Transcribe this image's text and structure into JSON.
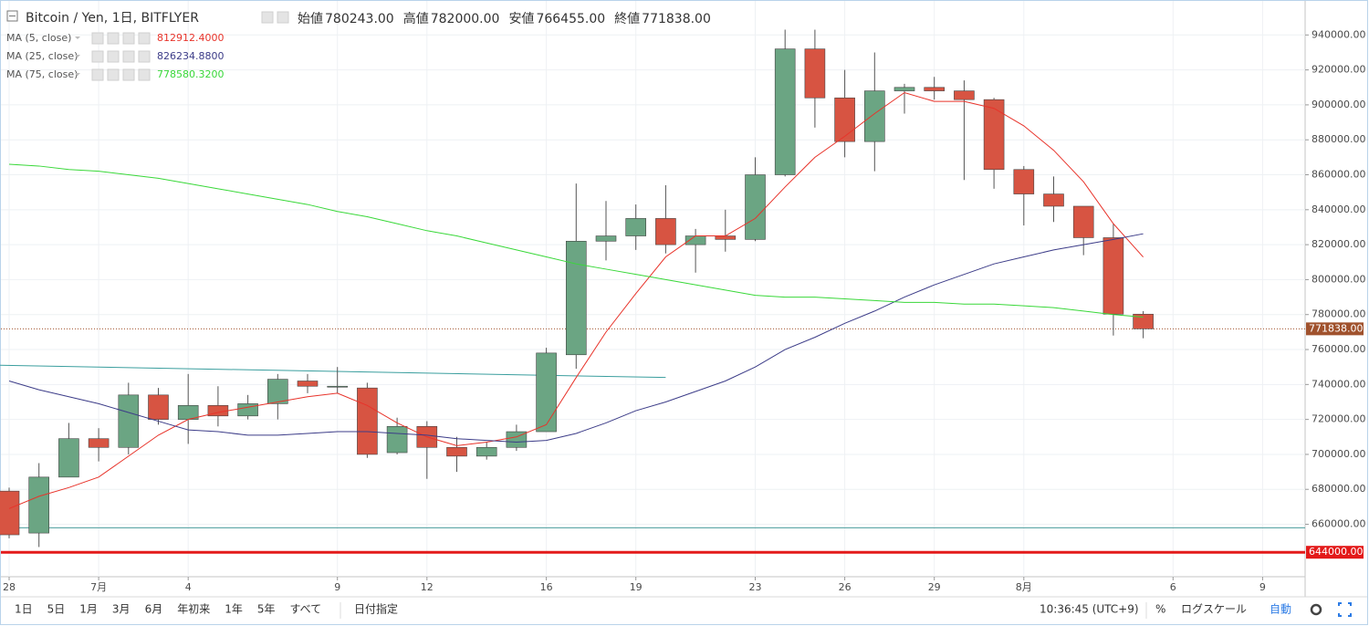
{
  "header": {
    "symbol": "Bitcoin / Yen, 1日, BITFLYER",
    "ohlc": [
      {
        "label": "始値",
        "value": "780243.00"
      },
      {
        "label": "高値",
        "value": "782000.00"
      },
      {
        "label": "安値",
        "value": "766455.00"
      },
      {
        "label": "終値",
        "value": "771838.00"
      }
    ]
  },
  "chart_data": {
    "type": "candlestick",
    "categories": [
      "06-28",
      "06-29",
      "06-30",
      "07-01",
      "07-02",
      "07-03",
      "07-04",
      "07-05",
      "07-06",
      "07-07",
      "07-08",
      "07-09",
      "07-10",
      "07-11",
      "07-12",
      "07-13",
      "07-14",
      "07-15",
      "07-16",
      "07-17",
      "07-18",
      "07-19",
      "07-20",
      "07-21",
      "07-22",
      "07-23",
      "07-24",
      "07-25",
      "07-26",
      "07-27",
      "07-28",
      "07-29",
      "07-30",
      "07-31",
      "08-01",
      "08-02",
      "08-03",
      "08-04",
      "08-05"
    ],
    "open": [
      679000,
      655000,
      687000,
      709000,
      704000,
      734000,
      720000,
      728000,
      722000,
      729000,
      742000,
      739000,
      738000,
      701000,
      716000,
      704000,
      699000,
      704000,
      713000,
      757000,
      822000,
      825000,
      835000,
      820000,
      825000,
      823000,
      860000,
      932000,
      904000,
      879000,
      908000,
      910000,
      908000,
      903000,
      863000,
      849000,
      842000,
      824000,
      780243
    ],
    "high": [
      681000,
      695000,
      718000,
      715000,
      741000,
      738000,
      746000,
      739000,
      734000,
      746000,
      746000,
      750000,
      741000,
      721000,
      719000,
      710000,
      707000,
      717000,
      761000,
      855000,
      845000,
      843000,
      854000,
      829000,
      840000,
      870000,
      943000,
      943000,
      920000,
      930000,
      912000,
      916000,
      914000,
      904000,
      865000,
      859000,
      842000,
      832000,
      782000
    ],
    "low": [
      652000,
      647000,
      687000,
      696000,
      700000,
      717000,
      706000,
      716000,
      720000,
      720000,
      735000,
      735000,
      698000,
      700000,
      686000,
      690000,
      697000,
      702000,
      713000,
      749000,
      811000,
      817000,
      815000,
      804000,
      816000,
      822000,
      859000,
      887000,
      870000,
      862000,
      895000,
      903000,
      857000,
      852000,
      831000,
      833000,
      814000,
      768000,
      766455
    ],
    "close": [
      654000,
      687000,
      709000,
      704000,
      734000,
      720000,
      728000,
      722000,
      729000,
      743000,
      739000,
      739000,
      700000,
      716000,
      704000,
      699000,
      704000,
      713000,
      758000,
      822000,
      825000,
      835000,
      820000,
      825000,
      823000,
      860000,
      932000,
      904000,
      879000,
      908000,
      910000,
      908000,
      903000,
      863000,
      849000,
      842000,
      824000,
      780243,
      771838
    ],
    "up_color": "#6ba583",
    "down_color": "#d75442",
    "series": [
      {
        "name": "MA (5, close)",
        "color": "#e8332a",
        "value_label": "812912.4000",
        "values": [
          669000,
          676000,
          681000,
          687000,
          699000,
          711000,
          720000,
          724000,
          727000,
          730000,
          733000,
          735000,
          728000,
          718000,
          710000,
          705000,
          707000,
          710000,
          717000,
          744000,
          770000,
          792000,
          813000,
          825000,
          825000,
          835000,
          853000,
          870000,
          882000,
          895000,
          907000,
          902000,
          902000,
          898000,
          888000,
          874000,
          856000,
          832000,
          812912.4
        ]
      },
      {
        "name": "MA (25, close)",
        "color": "#3c3c88",
        "value_label": "826234.8800",
        "values": [
          742000,
          737000,
          733000,
          729000,
          724000,
          719000,
          714000,
          713000,
          711000,
          711000,
          712000,
          713000,
          713000,
          712000,
          711000,
          709000,
          708000,
          707000,
          708000,
          712000,
          718000,
          725000,
          730000,
          736000,
          742000,
          750000,
          760000,
          767000,
          775000,
          782000,
          790000,
          797000,
          803000,
          809000,
          813000,
          817000,
          820000,
          823000,
          826234.88
        ]
      },
      {
        "name": "MA (75, close)",
        "color": "#39d839",
        "value_label": "778580.3200",
        "values": [
          866000,
          865000,
          863000,
          862000,
          860000,
          858000,
          855000,
          852000,
          849000,
          846000,
          843000,
          839000,
          836000,
          832000,
          828000,
          825000,
          821000,
          817000,
          813000,
          809000,
          806000,
          803000,
          800000,
          797000,
          794000,
          791000,
          790000,
          790000,
          789000,
          788000,
          787000,
          787000,
          786000,
          786000,
          785000,
          784000,
          782000,
          780000,
          778580.32
        ]
      }
    ],
    "ylim": [
      630000,
      960000
    ],
    "yticks": [
      {
        "value": 660000,
        "label": "660000.00"
      },
      {
        "value": 680000,
        "label": "680000.00"
      },
      {
        "value": 700000,
        "label": "700000.00"
      },
      {
        "value": 720000,
        "label": "720000.00"
      },
      {
        "value": 740000,
        "label": "740000.00"
      },
      {
        "value": 760000,
        "label": "760000.00"
      },
      {
        "value": 780000,
        "label": "780000.00"
      },
      {
        "value": 800000,
        "label": "800000.00"
      },
      {
        "value": 820000,
        "label": "820000.00"
      },
      {
        "value": 840000,
        "label": "840000.00"
      },
      {
        "value": 860000,
        "label": "860000.00"
      },
      {
        "value": 880000,
        "label": "880000.00"
      },
      {
        "value": 900000,
        "label": "900000.00"
      },
      {
        "value": 920000,
        "label": "920000.00"
      },
      {
        "value": 940000,
        "label": "940000.00"
      }
    ],
    "xticks": [
      {
        "value": "06-28",
        "label": "28"
      },
      {
        "value": "07-01",
        "label": "7月"
      },
      {
        "value": "07-04",
        "label": "4"
      },
      {
        "value": "07-09",
        "label": "9"
      },
      {
        "value": "07-12",
        "label": "12"
      },
      {
        "value": "07-16",
        "label": "16"
      },
      {
        "value": "07-19",
        "label": "19"
      },
      {
        "value": "07-23",
        "label": "23"
      },
      {
        "value": "07-26",
        "label": "26"
      },
      {
        "value": "07-29",
        "label": "29"
      },
      {
        "value": "08-01",
        "label": "8月"
      },
      {
        "value": "08-06",
        "label": "6"
      },
      {
        "value": "08-09",
        "label": "9"
      }
    ],
    "grid": true,
    "price_lines": [
      {
        "value": 771838,
        "label": "771838.00",
        "color": "#a0522d",
        "style": "dotted",
        "width": 1
      },
      {
        "value": 644000,
        "label": "644000.00",
        "color": "#e31a1a",
        "style": "solid",
        "width": 3
      },
      {
        "value": 658000,
        "color": "#4a9c9c",
        "style": "solid",
        "width": 1
      }
    ],
    "trend_lines": [
      {
        "color": "#3a9e9e",
        "points": [
          {
            "x": "06-28",
            "value": 751000
          },
          {
            "x": "07-20",
            "value": 744000
          }
        ]
      }
    ]
  },
  "toolbar": {
    "ranges": [
      "1日",
      "5日",
      "1月",
      "3月",
      "6月",
      "年初来",
      "1年",
      "5年",
      "すべて"
    ],
    "date_picker": "日付指定",
    "clock": "10:36:45 (UTC+9)",
    "percent": "%",
    "log": "ログスケール",
    "auto": "自動"
  }
}
